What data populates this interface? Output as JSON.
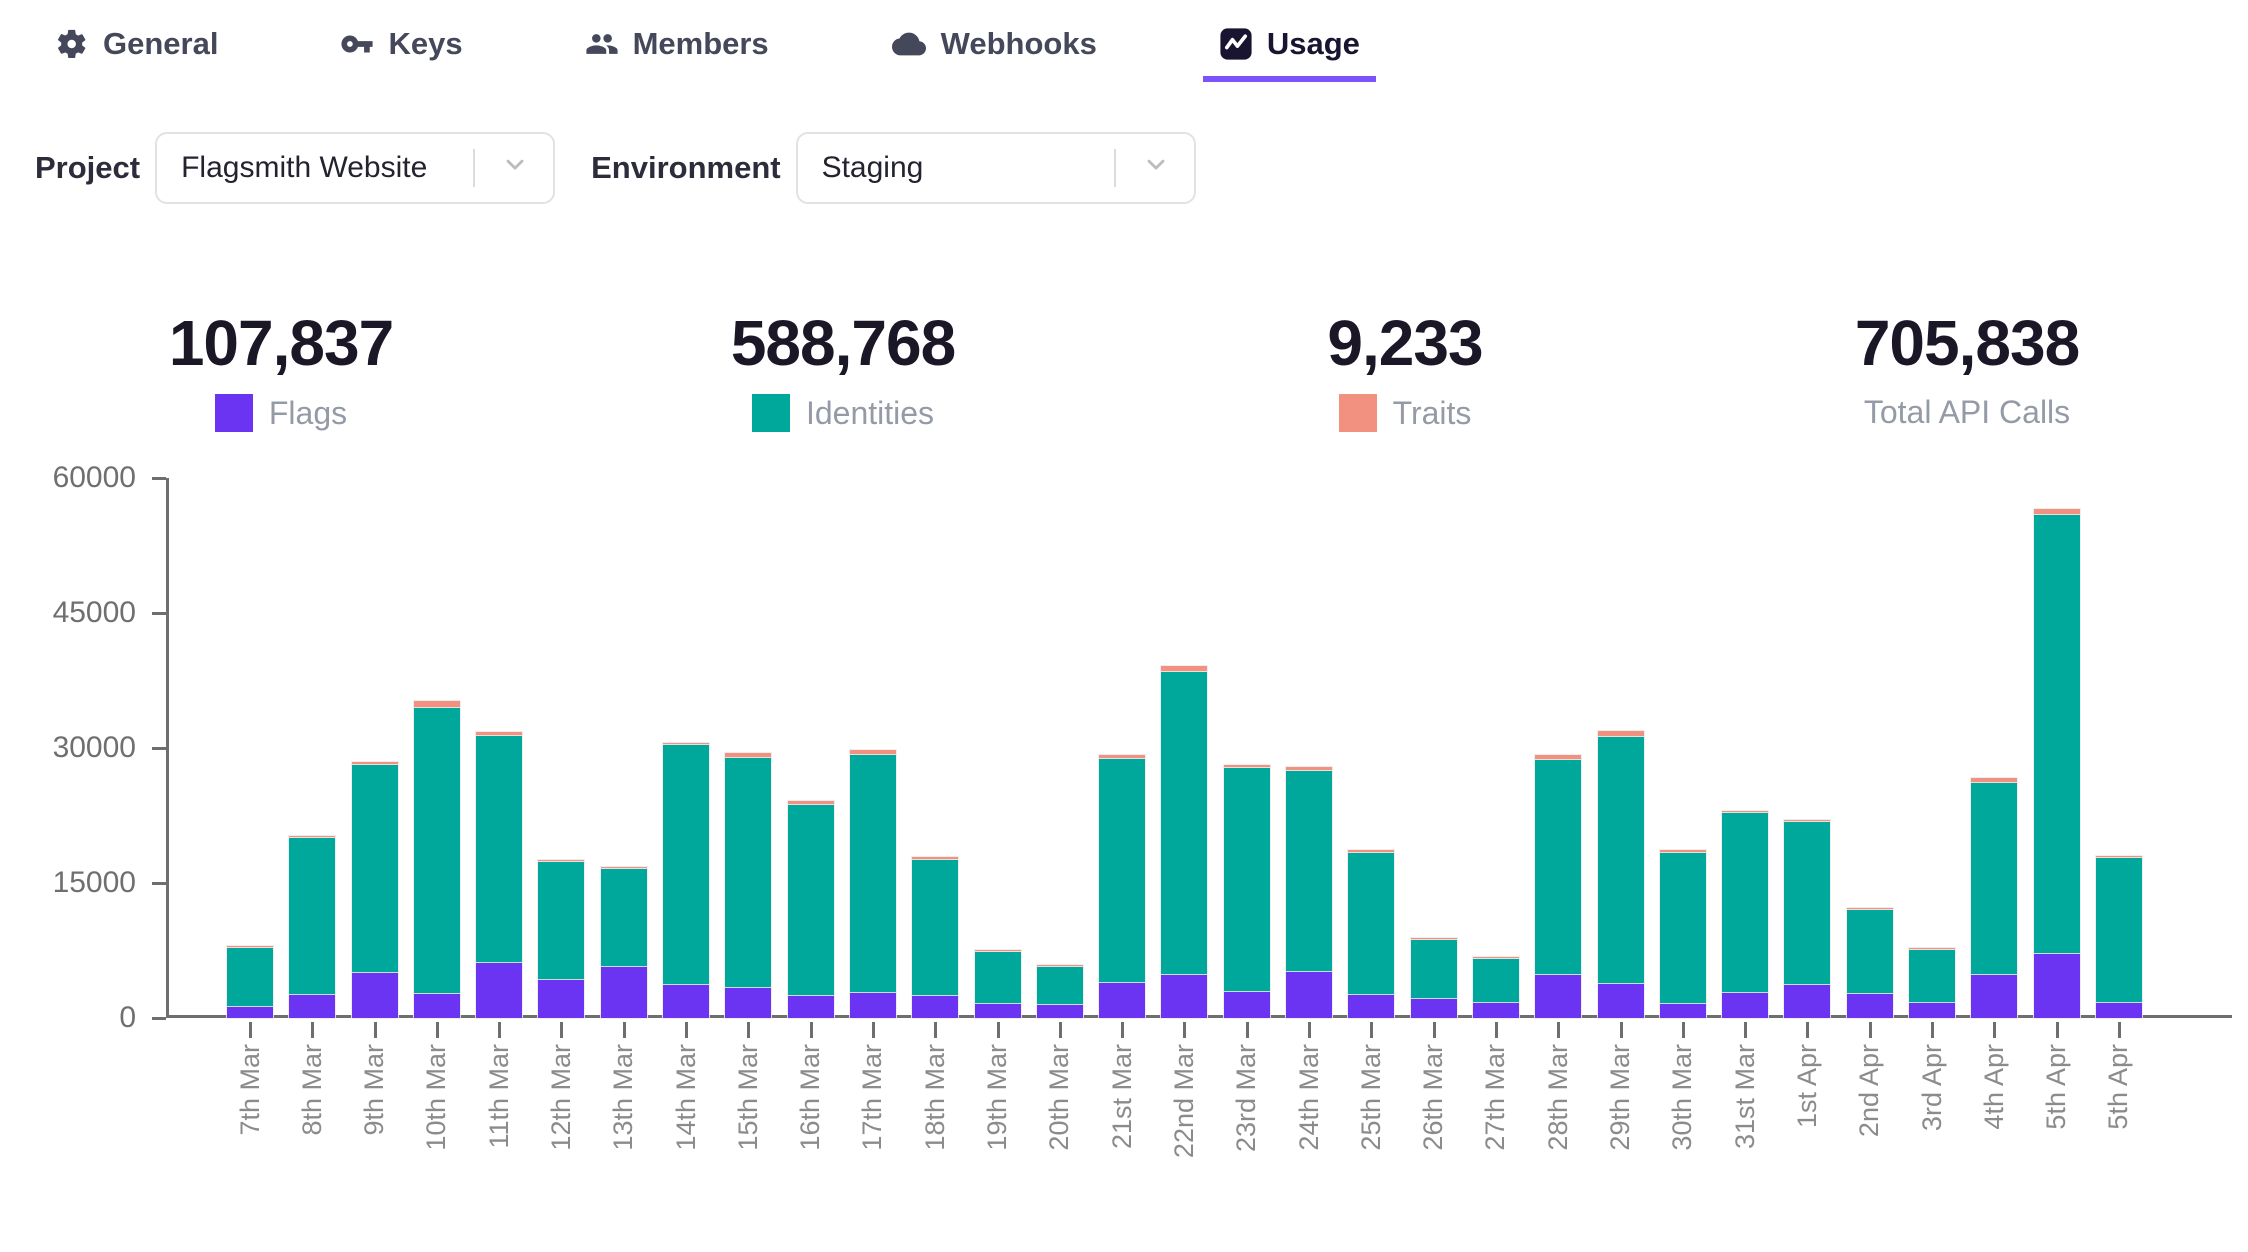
{
  "tabs": [
    {
      "label": "General",
      "icon": "gear-icon",
      "active": false
    },
    {
      "label": "Keys",
      "icon": "key-icon",
      "active": false
    },
    {
      "label": "Members",
      "icon": "members-icon",
      "active": false
    },
    {
      "label": "Webhooks",
      "icon": "cloud-icon",
      "active": false
    },
    {
      "label": "Usage",
      "icon": "usage-icon",
      "active": true
    }
  ],
  "filters": {
    "project_label": "Project",
    "project_value": "Flagsmith Website",
    "environment_label": "Environment",
    "environment_value": "Staging"
  },
  "stats": [
    {
      "value": "107,837",
      "label": "Flags",
      "swatch": "#6a34f2"
    },
    {
      "value": "588,768",
      "label": "Identities",
      "swatch": "#00a79b"
    },
    {
      "value": "9,233",
      "label": "Traits",
      "swatch": "#f2917f"
    },
    {
      "value": "705,838",
      "label": "Total API Calls",
      "swatch": null
    }
  ],
  "colors": {
    "flags": "#6a34f2",
    "identities": "#00a79b",
    "traits": "#f2917f",
    "active_tab_underline": "#7c52fa"
  },
  "chart_data": {
    "type": "bar",
    "stacked": true,
    "title": "",
    "xlabel": "",
    "ylabel": "",
    "ylim": [
      0,
      60000
    ],
    "yticks": [
      0,
      15000,
      30000,
      45000,
      60000
    ],
    "grid": false,
    "legend_position": "above-chart-with-stats",
    "categories": [
      "7th Mar",
      "8th Mar",
      "9th Mar",
      "10th Mar",
      "11th Mar",
      "12th Mar",
      "13th Mar",
      "14th Mar",
      "15th Mar",
      "16th Mar",
      "17th Mar",
      "18th Mar",
      "19th Mar",
      "20th Mar",
      "21st Mar",
      "22nd Mar",
      "23rd Mar",
      "24th Mar",
      "25th Mar",
      "26th Mar",
      "27th Mar",
      "28th Mar",
      "29th Mar",
      "30th Mar",
      "31st Mar",
      "1st Apr",
      "2nd Apr",
      "3rd Apr",
      "4th Apr",
      "5th Apr",
      "5th Apr"
    ],
    "series": [
      {
        "name": "Flags",
        "color": "#6a34f2",
        "values": [
          1300,
          2600,
          5100,
          2670,
          6160,
          4300,
          5750,
          3700,
          3370,
          2550,
          2790,
          2470,
          1560,
          1520,
          3990,
          4850,
          2960,
          5180,
          2590,
          2140,
          1730,
          4850,
          3780,
          1640,
          2880,
          3700,
          2750,
          1730,
          4800,
          7190,
          1730
        ]
      },
      {
        "name": "Identities",
        "color": "#00a79b",
        "values": [
          6550,
          17460,
          23090,
          31790,
          25280,
          13100,
          10840,
          26630,
          25600,
          21200,
          26510,
          15120,
          5870,
          4190,
          24860,
          33610,
          24890,
          22280,
          15780,
          6540,
          4900,
          23840,
          27530,
          16770,
          19930,
          18080,
          9270,
          5850,
          21380,
          48780,
          16100
        ]
      },
      {
        "name": "Traits",
        "color": "#f2917f",
        "values": [
          80,
          150,
          250,
          800,
          410,
          70,
          50,
          200,
          500,
          410,
          490,
          370,
          50,
          40,
          450,
          660,
          300,
          490,
          330,
          30,
          30,
          580,
          660,
          290,
          290,
          290,
          20,
          20,
          530,
          660,
          250
        ]
      }
    ]
  }
}
